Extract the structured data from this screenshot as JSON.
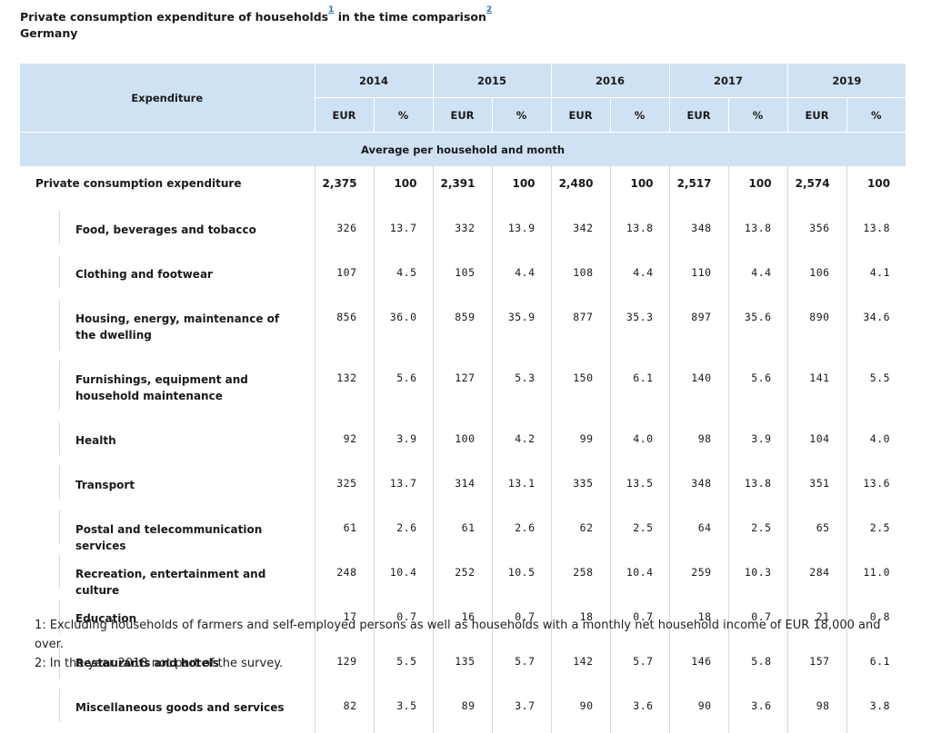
{
  "title": {
    "main_before": "Private consumption expenditure of households",
    "fn1_ref": "1",
    "main_after": " in the time comparison",
    "fn2_ref": "2",
    "subtitle": "Germany"
  },
  "table": {
    "header_expenditure": "Expenditure",
    "years": [
      "2014",
      "2015",
      "2016",
      "2017",
      "2019"
    ],
    "unit_eur": "EUR",
    "unit_pct": "%",
    "average_label": "Average per household and month",
    "total": {
      "label": "Private consumption expenditure",
      "values": [
        "2,375",
        "100",
        "2,391",
        "100",
        "2,480",
        "100",
        "2,517",
        "100",
        "2,574",
        "100"
      ]
    },
    "rows": [
      {
        "label": "Food, beverages and tobacco",
        "values": [
          "326",
          "13.7",
          "332",
          "13.9",
          "342",
          "13.8",
          "348",
          "13.8",
          "356",
          "13.8"
        ]
      },
      {
        "label": "Clothing and footwear",
        "values": [
          "107",
          "4.5",
          "105",
          "4.4",
          "108",
          "4.4",
          "110",
          "4.4",
          "106",
          "4.1"
        ]
      },
      {
        "label": "Housing, energy, maintenance of the dwelling",
        "values": [
          "856",
          "36.0",
          "859",
          "35.9",
          "877",
          "35.3",
          "897",
          "35.6",
          "890",
          "34.6"
        ]
      },
      {
        "label": "Furnishings, equipment and household maintenance",
        "values": [
          "132",
          "5.6",
          "127",
          "5.3",
          "150",
          "6.1",
          "140",
          "5.6",
          "141",
          "5.5"
        ]
      },
      {
        "label": "Health",
        "values": [
          "92",
          "3.9",
          "100",
          "4.2",
          "99",
          "4.0",
          "98",
          "3.9",
          "104",
          "4.0"
        ]
      },
      {
        "label": "Transport",
        "values": [
          "325",
          "13.7",
          "314",
          "13.1",
          "335",
          "13.5",
          "348",
          "13.8",
          "351",
          "13.6"
        ]
      },
      {
        "label": "Postal and telecommunication services",
        "values": [
          "61",
          "2.6",
          "61",
          "2.6",
          "62",
          "2.5",
          "64",
          "2.5",
          "65",
          "2.5"
        ]
      },
      {
        "label": "Recreation, entertainment and culture",
        "values": [
          "248",
          "10.4",
          "252",
          "10.5",
          "258",
          "10.4",
          "259",
          "10.3",
          "284",
          "11.0"
        ]
      },
      {
        "label": "Education",
        "values": [
          "17",
          "0.7",
          "16",
          "0.7",
          "18",
          "0.7",
          "18",
          "0.7",
          "21",
          "0.8"
        ]
      },
      {
        "label": "Restaurants and hotels",
        "values": [
          "129",
          "5.5",
          "135",
          "5.7",
          "142",
          "5.7",
          "146",
          "5.8",
          "157",
          "6.1"
        ]
      },
      {
        "label": "Miscellaneous goods and services",
        "values": [
          "82",
          "3.5",
          "89",
          "3.7",
          "90",
          "3.6",
          "90",
          "3.6",
          "98",
          "3.8"
        ]
      }
    ]
  },
  "footnotes": [
    "1: Excluding households of farmers and self-employed persons as well as households with a monthly net household income of EUR 18,000 and over.",
    "2: In the year 2018 not part of the survey."
  ],
  "colors": {
    "header_bg": "#cfe2f3",
    "link": "#2a73b8"
  }
}
